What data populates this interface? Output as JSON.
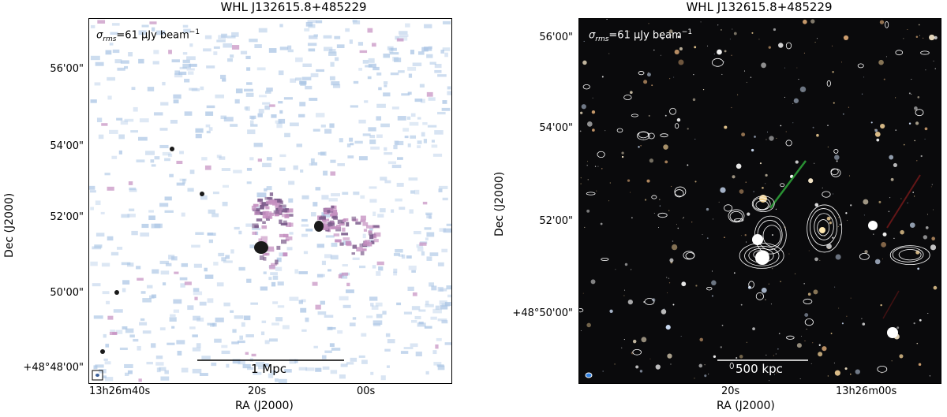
{
  "chart_data": [
    {
      "type": "heatmap",
      "title": "WHL J132615.8+485229",
      "annotation": {
        "sigma_symbol": "σ",
        "sigma_sub": "rms",
        "value_text": "=61 μJy beam",
        "exponent": "−1"
      },
      "xlabel": "RA (J2000)",
      "ylabel": "Dec (J2000)",
      "x_ticks": [
        "13h26m40s",
        "20s",
        "00s"
      ],
      "y_ticks": [
        "56'00\"",
        "54'00\"",
        "52'00\"",
        "50'00\"",
        "+48°48'00\""
      ],
      "scale_bar": "1 Mpc",
      "colors": {
        "background": "#ffffff",
        "noise": "#a9c4e4",
        "emission": "#c48fc0",
        "core": "#1a1a1a"
      }
    },
    {
      "type": "heatmap",
      "title": "WHL J132615.8+485229",
      "annotation": {
        "sigma_symbol": "σ",
        "sigma_sub": "rms",
        "value_text": "=61 μJy beam",
        "exponent": "−1"
      },
      "xlabel": "RA (J2000)",
      "ylabel": "Dec (J2000)",
      "x_ticks": [
        "20s",
        "13h26m00s"
      ],
      "y_ticks": [
        "56'00\"",
        "54'00\"",
        "52'00\"",
        "+48°50'00\""
      ],
      "scale_bar": "500 kpc",
      "colors": {
        "background": "#0a0a0c",
        "contour": "#ffffff",
        "beam": "#2f7fe0"
      }
    }
  ]
}
